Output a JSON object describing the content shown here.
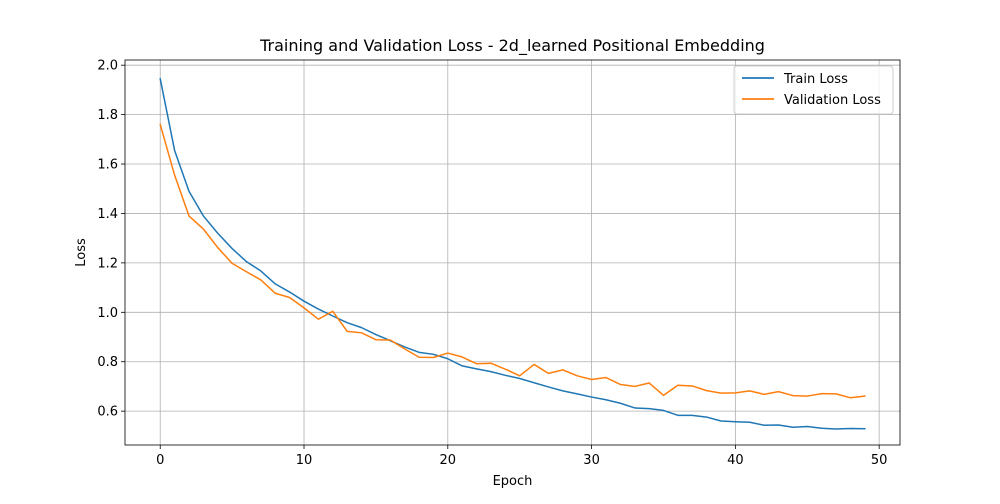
{
  "chart_data": {
    "type": "line",
    "title": "Training and Validation Loss  - 2d_learned Positional Embedding",
    "xlabel": "Epoch",
    "ylabel": "Loss",
    "xlim": [
      -2.45,
      51.45
    ],
    "ylim": [
      0.463,
      2.021
    ],
    "xticks": [
      0,
      10,
      20,
      30,
      40,
      50
    ],
    "yticks": [
      0.6,
      0.8,
      1.0,
      1.2,
      1.4,
      1.6,
      1.8,
      2.0
    ],
    "xtick_labels": [
      "0",
      "10",
      "20",
      "30",
      "40",
      "50"
    ],
    "ytick_labels": [
      "0.6",
      "0.8",
      "1.0",
      "1.2",
      "1.4",
      "1.6",
      "1.8",
      "2.0"
    ],
    "grid": true,
    "legend_position": "top-right",
    "x": [
      0,
      1,
      2,
      3,
      4,
      5,
      6,
      7,
      8,
      9,
      10,
      11,
      12,
      13,
      14,
      15,
      16,
      17,
      18,
      19,
      20,
      21,
      22,
      23,
      24,
      25,
      26,
      27,
      28,
      29,
      30,
      31,
      32,
      33,
      34,
      35,
      36,
      37,
      38,
      39,
      40,
      41,
      42,
      43,
      44,
      45,
      46,
      47,
      48,
      49
    ],
    "series": [
      {
        "name": "Train Loss",
        "color": "#1f77b4",
        "values": [
          1.945,
          1.655,
          1.49,
          1.39,
          1.32,
          1.258,
          1.205,
          1.167,
          1.115,
          1.082,
          1.045,
          1.013,
          0.985,
          0.958,
          0.938,
          0.91,
          0.885,
          0.86,
          0.838,
          0.83,
          0.812,
          0.783,
          0.771,
          0.76,
          0.745,
          0.732,
          0.715,
          0.698,
          0.682,
          0.67,
          0.657,
          0.646,
          0.632,
          0.613,
          0.61,
          0.603,
          0.583,
          0.583,
          0.576,
          0.56,
          0.557,
          0.555,
          0.543,
          0.544,
          0.535,
          0.538,
          0.531,
          0.528,
          0.53,
          0.529
        ]
      },
      {
        "name": "Validation Loss",
        "color": "#ff7f0e",
        "values": [
          1.76,
          1.555,
          1.39,
          1.337,
          1.262,
          1.198,
          1.164,
          1.131,
          1.077,
          1.06,
          1.018,
          0.972,
          1.004,
          0.923,
          0.917,
          0.889,
          0.888,
          0.852,
          0.818,
          0.817,
          0.835,
          0.819,
          0.792,
          0.794,
          0.77,
          0.743,
          0.789,
          0.753,
          0.767,
          0.743,
          0.728,
          0.736,
          0.708,
          0.7,
          0.714,
          0.664,
          0.705,
          0.702,
          0.683,
          0.673,
          0.674,
          0.682,
          0.668,
          0.679,
          0.663,
          0.661,
          0.671,
          0.67,
          0.654,
          0.661
        ]
      }
    ]
  }
}
